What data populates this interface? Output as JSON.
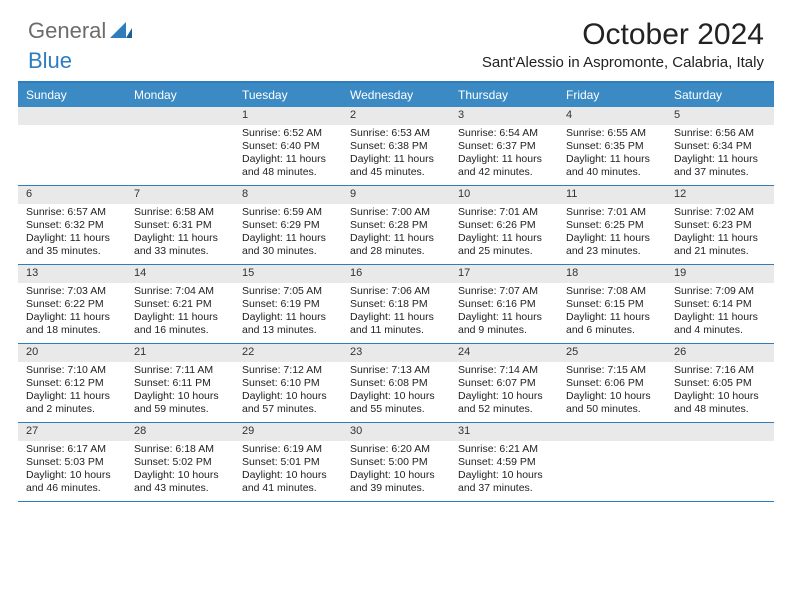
{
  "brand": {
    "part1": "General",
    "part2": "Blue"
  },
  "title": "October 2024",
  "location": "Sant'Alessio in Aspromonte, Calabria, Italy",
  "colors": {
    "accent": "#3b8ac4",
    "accent_border": "#2f7dbf",
    "daynum_bg": "#e9e9e9",
    "text": "#222222",
    "logo_gray": "#6c6c6c"
  },
  "day_headers": [
    "Sunday",
    "Monday",
    "Tuesday",
    "Wednesday",
    "Thursday",
    "Friday",
    "Saturday"
  ],
  "weeks": [
    [
      null,
      null,
      {
        "n": "1",
        "sunrise": "Sunrise: 6:52 AM",
        "sunset": "Sunset: 6:40 PM",
        "day1": "Daylight: 11 hours",
        "day2": "and 48 minutes."
      },
      {
        "n": "2",
        "sunrise": "Sunrise: 6:53 AM",
        "sunset": "Sunset: 6:38 PM",
        "day1": "Daylight: 11 hours",
        "day2": "and 45 minutes."
      },
      {
        "n": "3",
        "sunrise": "Sunrise: 6:54 AM",
        "sunset": "Sunset: 6:37 PM",
        "day1": "Daylight: 11 hours",
        "day2": "and 42 minutes."
      },
      {
        "n": "4",
        "sunrise": "Sunrise: 6:55 AM",
        "sunset": "Sunset: 6:35 PM",
        "day1": "Daylight: 11 hours",
        "day2": "and 40 minutes."
      },
      {
        "n": "5",
        "sunrise": "Sunrise: 6:56 AM",
        "sunset": "Sunset: 6:34 PM",
        "day1": "Daylight: 11 hours",
        "day2": "and 37 minutes."
      }
    ],
    [
      {
        "n": "6",
        "sunrise": "Sunrise: 6:57 AM",
        "sunset": "Sunset: 6:32 PM",
        "day1": "Daylight: 11 hours",
        "day2": "and 35 minutes."
      },
      {
        "n": "7",
        "sunrise": "Sunrise: 6:58 AM",
        "sunset": "Sunset: 6:31 PM",
        "day1": "Daylight: 11 hours",
        "day2": "and 33 minutes."
      },
      {
        "n": "8",
        "sunrise": "Sunrise: 6:59 AM",
        "sunset": "Sunset: 6:29 PM",
        "day1": "Daylight: 11 hours",
        "day2": "and 30 minutes."
      },
      {
        "n": "9",
        "sunrise": "Sunrise: 7:00 AM",
        "sunset": "Sunset: 6:28 PM",
        "day1": "Daylight: 11 hours",
        "day2": "and 28 minutes."
      },
      {
        "n": "10",
        "sunrise": "Sunrise: 7:01 AM",
        "sunset": "Sunset: 6:26 PM",
        "day1": "Daylight: 11 hours",
        "day2": "and 25 minutes."
      },
      {
        "n": "11",
        "sunrise": "Sunrise: 7:01 AM",
        "sunset": "Sunset: 6:25 PM",
        "day1": "Daylight: 11 hours",
        "day2": "and 23 minutes."
      },
      {
        "n": "12",
        "sunrise": "Sunrise: 7:02 AM",
        "sunset": "Sunset: 6:23 PM",
        "day1": "Daylight: 11 hours",
        "day2": "and 21 minutes."
      }
    ],
    [
      {
        "n": "13",
        "sunrise": "Sunrise: 7:03 AM",
        "sunset": "Sunset: 6:22 PM",
        "day1": "Daylight: 11 hours",
        "day2": "and 18 minutes."
      },
      {
        "n": "14",
        "sunrise": "Sunrise: 7:04 AM",
        "sunset": "Sunset: 6:21 PM",
        "day1": "Daylight: 11 hours",
        "day2": "and 16 minutes."
      },
      {
        "n": "15",
        "sunrise": "Sunrise: 7:05 AM",
        "sunset": "Sunset: 6:19 PM",
        "day1": "Daylight: 11 hours",
        "day2": "and 13 minutes."
      },
      {
        "n": "16",
        "sunrise": "Sunrise: 7:06 AM",
        "sunset": "Sunset: 6:18 PM",
        "day1": "Daylight: 11 hours",
        "day2": "and 11 minutes."
      },
      {
        "n": "17",
        "sunrise": "Sunrise: 7:07 AM",
        "sunset": "Sunset: 6:16 PM",
        "day1": "Daylight: 11 hours",
        "day2": "and 9 minutes."
      },
      {
        "n": "18",
        "sunrise": "Sunrise: 7:08 AM",
        "sunset": "Sunset: 6:15 PM",
        "day1": "Daylight: 11 hours",
        "day2": "and 6 minutes."
      },
      {
        "n": "19",
        "sunrise": "Sunrise: 7:09 AM",
        "sunset": "Sunset: 6:14 PM",
        "day1": "Daylight: 11 hours",
        "day2": "and 4 minutes."
      }
    ],
    [
      {
        "n": "20",
        "sunrise": "Sunrise: 7:10 AM",
        "sunset": "Sunset: 6:12 PM",
        "day1": "Daylight: 11 hours",
        "day2": "and 2 minutes."
      },
      {
        "n": "21",
        "sunrise": "Sunrise: 7:11 AM",
        "sunset": "Sunset: 6:11 PM",
        "day1": "Daylight: 10 hours",
        "day2": "and 59 minutes."
      },
      {
        "n": "22",
        "sunrise": "Sunrise: 7:12 AM",
        "sunset": "Sunset: 6:10 PM",
        "day1": "Daylight: 10 hours",
        "day2": "and 57 minutes."
      },
      {
        "n": "23",
        "sunrise": "Sunrise: 7:13 AM",
        "sunset": "Sunset: 6:08 PM",
        "day1": "Daylight: 10 hours",
        "day2": "and 55 minutes."
      },
      {
        "n": "24",
        "sunrise": "Sunrise: 7:14 AM",
        "sunset": "Sunset: 6:07 PM",
        "day1": "Daylight: 10 hours",
        "day2": "and 52 minutes."
      },
      {
        "n": "25",
        "sunrise": "Sunrise: 7:15 AM",
        "sunset": "Sunset: 6:06 PM",
        "day1": "Daylight: 10 hours",
        "day2": "and 50 minutes."
      },
      {
        "n": "26",
        "sunrise": "Sunrise: 7:16 AM",
        "sunset": "Sunset: 6:05 PM",
        "day1": "Daylight: 10 hours",
        "day2": "and 48 minutes."
      }
    ],
    [
      {
        "n": "27",
        "sunrise": "Sunrise: 6:17 AM",
        "sunset": "Sunset: 5:03 PM",
        "day1": "Daylight: 10 hours",
        "day2": "and 46 minutes."
      },
      {
        "n": "28",
        "sunrise": "Sunrise: 6:18 AM",
        "sunset": "Sunset: 5:02 PM",
        "day1": "Daylight: 10 hours",
        "day2": "and 43 minutes."
      },
      {
        "n": "29",
        "sunrise": "Sunrise: 6:19 AM",
        "sunset": "Sunset: 5:01 PM",
        "day1": "Daylight: 10 hours",
        "day2": "and 41 minutes."
      },
      {
        "n": "30",
        "sunrise": "Sunrise: 6:20 AM",
        "sunset": "Sunset: 5:00 PM",
        "day1": "Daylight: 10 hours",
        "day2": "and 39 minutes."
      },
      {
        "n": "31",
        "sunrise": "Sunrise: 6:21 AM",
        "sunset": "Sunset: 4:59 PM",
        "day1": "Daylight: 10 hours",
        "day2": "and 37 minutes."
      },
      null,
      null
    ]
  ]
}
